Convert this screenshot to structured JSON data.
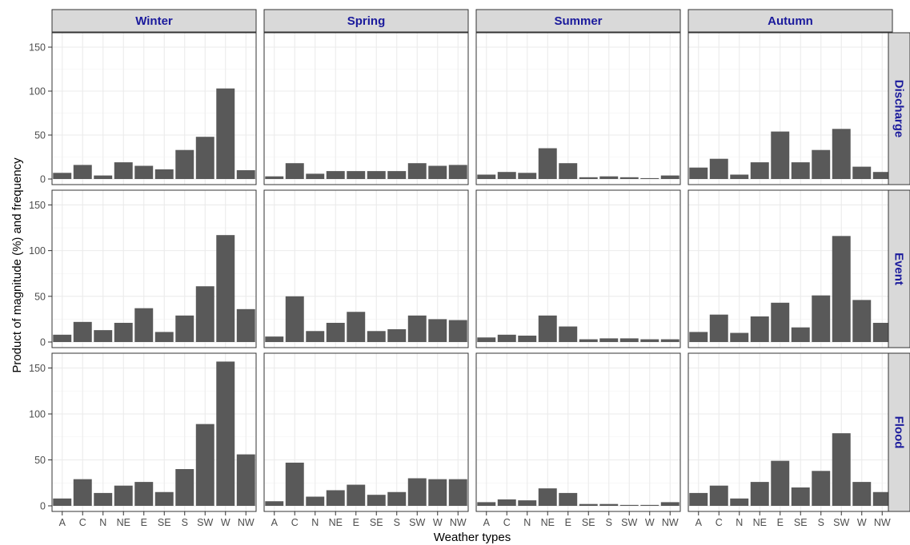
{
  "chart_data": {
    "type": "bar",
    "layout": "facet_grid",
    "xlabel": "Weather types",
    "ylabel": "Product of magnitude (%) and frequency",
    "ylim": [
      0,
      160
    ],
    "yticks": [
      0,
      50,
      100,
      150
    ],
    "categories": [
      "A",
      "C",
      "N",
      "NE",
      "E",
      "SE",
      "S",
      "SW",
      "W",
      "NW"
    ],
    "columns": [
      "Winter",
      "Spring",
      "Summer",
      "Autumn"
    ],
    "rows": [
      "Discharge",
      "Event",
      "Flood"
    ],
    "grid": true,
    "bar_color": "#595959",
    "strip_color": "#d9d9d9",
    "strip_text_color": "#1a1a9c",
    "panels": [
      {
        "row": "Discharge",
        "column": "Winter",
        "values": [
          7,
          16,
          4,
          19,
          15,
          11,
          33,
          48,
          103,
          10
        ]
      },
      {
        "row": "Discharge",
        "column": "Spring",
        "values": [
          3,
          18,
          6,
          9,
          9,
          9,
          9,
          18,
          15,
          16
        ]
      },
      {
        "row": "Discharge",
        "column": "Summer",
        "values": [
          5,
          8,
          7,
          35,
          18,
          2,
          3,
          2,
          1,
          4
        ]
      },
      {
        "row": "Discharge",
        "column": "Autumn",
        "values": [
          13,
          23,
          5,
          19,
          54,
          19,
          33,
          57,
          14,
          8
        ]
      },
      {
        "row": "Event",
        "column": "Winter",
        "values": [
          8,
          22,
          13,
          21,
          37,
          11,
          29,
          61,
          117,
          36
        ]
      },
      {
        "row": "Event",
        "column": "Spring",
        "values": [
          6,
          50,
          12,
          21,
          33,
          12,
          14,
          29,
          25,
          24
        ]
      },
      {
        "row": "Event",
        "column": "Summer",
        "values": [
          5,
          8,
          7,
          29,
          17,
          3,
          4,
          4,
          3,
          3
        ]
      },
      {
        "row": "Event",
        "column": "Autumn",
        "values": [
          11,
          30,
          10,
          28,
          43,
          16,
          51,
          116,
          46,
          21
        ]
      },
      {
        "row": "Flood",
        "column": "Winter",
        "values": [
          8,
          29,
          14,
          22,
          26,
          15,
          40,
          89,
          157,
          56
        ]
      },
      {
        "row": "Flood",
        "column": "Spring",
        "values": [
          5,
          47,
          10,
          17,
          23,
          12,
          15,
          30,
          29,
          29
        ]
      },
      {
        "row": "Flood",
        "column": "Summer",
        "values": [
          4,
          7,
          6,
          19,
          14,
          2,
          2,
          1,
          1,
          4
        ]
      },
      {
        "row": "Flood",
        "column": "Autumn",
        "values": [
          14,
          22,
          8,
          26,
          49,
          20,
          38,
          79,
          26,
          15
        ]
      }
    ]
  }
}
